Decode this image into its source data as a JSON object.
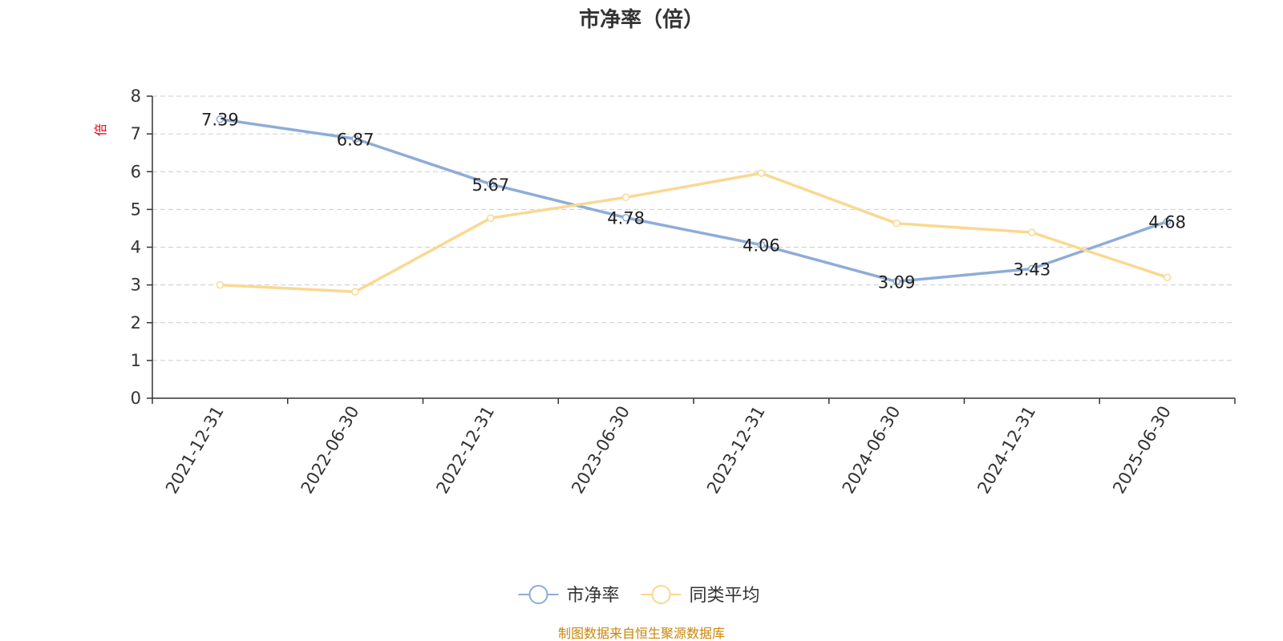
{
  "chart_data": {
    "type": "line",
    "title": "市净率（倍）",
    "y_unit": "倍",
    "ylim": [
      0,
      8
    ],
    "y_ticks": [
      "0",
      "1",
      "2",
      "3",
      "4",
      "5",
      "6",
      "7",
      "8"
    ],
    "grid": true,
    "legend_position": "bottom-center",
    "categories": [
      "2021-12-31",
      "2022-06-30",
      "2022-12-31",
      "2023-06-30",
      "2023-12-31",
      "2024-06-30",
      "2024-12-31",
      "2025-06-30"
    ],
    "series": [
      {
        "name": "市净率",
        "color": "#8eacd8",
        "values": [
          7.39,
          6.87,
          5.67,
          4.78,
          4.06,
          3.09,
          3.43,
          4.68
        ],
        "labels": [
          "7.39",
          "6.87",
          "5.67",
          "4.78",
          "4.06",
          "3.09",
          "3.43",
          "4.68"
        ]
      },
      {
        "name": "同类平均",
        "color": "#fad892",
        "values": [
          3.0,
          2.82,
          4.77,
          5.32,
          5.96,
          4.63,
          4.39,
          3.2
        ]
      }
    ]
  },
  "source_note": "制图数据来自恒生聚源数据库"
}
